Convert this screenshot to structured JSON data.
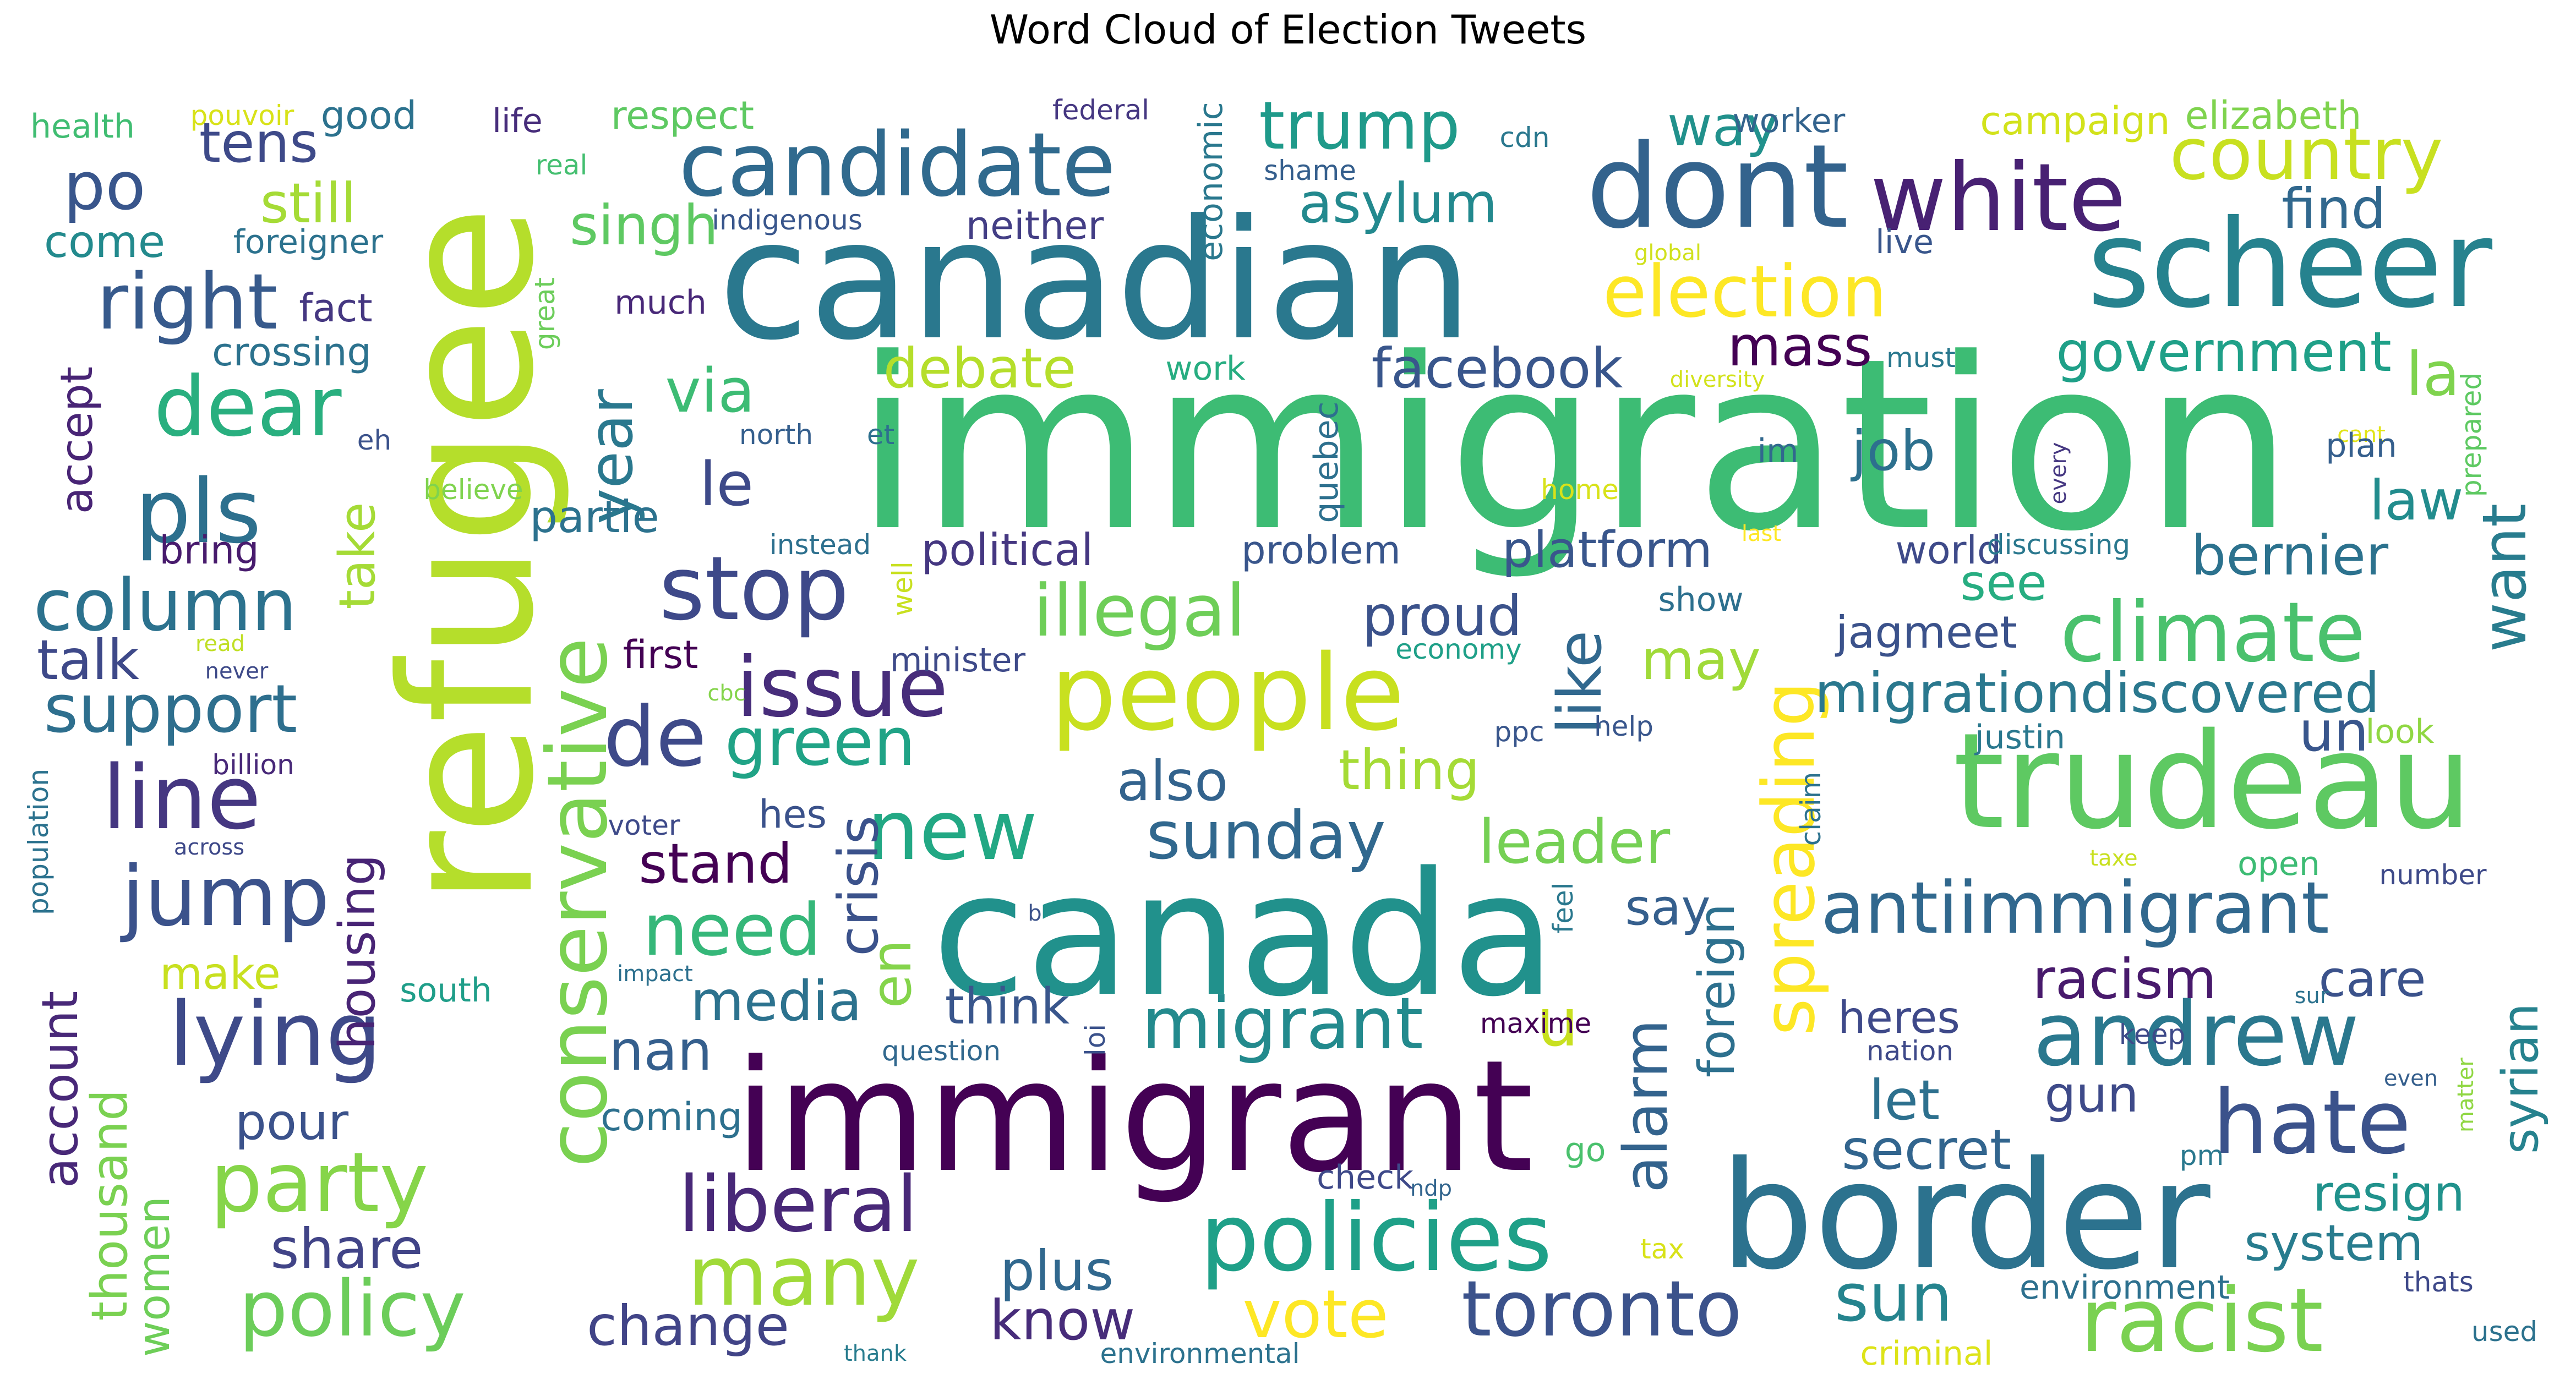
{
  "title": "Word Cloud of Election Tweets",
  "palette": "viridis",
  "words": [
    {
      "text": "immigration",
      "color": "#3dbc74"
    },
    {
      "text": "refugee",
      "color": "#b5de2b"
    },
    {
      "text": "canadian",
      "color": "#2a788e"
    },
    {
      "text": "canada",
      "color": "#21918c"
    },
    {
      "text": "immigrant",
      "color": "#440154"
    },
    {
      "text": "border",
      "color": "#2c728e"
    },
    {
      "text": "trudeau",
      "color": "#5ec962"
    },
    {
      "text": "scheer",
      "color": "#26828e"
    },
    {
      "text": "dont",
      "color": "#33638d"
    },
    {
      "text": "people",
      "color": "#c8e020"
    },
    {
      "text": "candidate",
      "color": "#306a8e"
    },
    {
      "text": "white",
      "color": "#482173"
    },
    {
      "text": "policies",
      "color": "#1fa088"
    },
    {
      "text": "conservative",
      "color": "#7ad151"
    },
    {
      "text": "racist",
      "color": "#7ad151"
    },
    {
      "text": "stop",
      "color": "#3e4989"
    },
    {
      "text": "andrew",
      "color": "#2a788e"
    },
    {
      "text": "spreading",
      "color": "#fde725"
    },
    {
      "text": "antiimmigrant",
      "color": "#31688e"
    },
    {
      "text": "climate",
      "color": "#4ac16d"
    },
    {
      "text": "hate",
      "color": "#3b528b"
    },
    {
      "text": "party",
      "color": "#86d549"
    },
    {
      "text": "lying",
      "color": "#3e4a89"
    },
    {
      "text": "many",
      "color": "#a0da39"
    },
    {
      "text": "toronto",
      "color": "#3b528b"
    },
    {
      "text": "policy",
      "color": "#6ccd5a"
    },
    {
      "text": "jump",
      "color": "#3b528b"
    },
    {
      "text": "line",
      "color": "#453781"
    },
    {
      "text": "pls",
      "color": "#2d708e"
    },
    {
      "text": "right",
      "color": "#375a8c"
    },
    {
      "text": "dear",
      "color": "#29af7f"
    },
    {
      "text": "column",
      "color": "#2c728e"
    },
    {
      "text": "new",
      "color": "#22a884"
    },
    {
      "text": "de",
      "color": "#3e4a89"
    },
    {
      "text": "issue",
      "color": "#472d7b"
    },
    {
      "text": "want",
      "color": "#287c8e"
    },
    {
      "text": "country",
      "color": "#c8e020"
    },
    {
      "text": "election",
      "color": "#fde725"
    },
    {
      "text": "illegal",
      "color": "#6ece58"
    },
    {
      "text": "liberal",
      "color": "#482878"
    },
    {
      "text": "migrant",
      "color": "#238a8d"
    },
    {
      "text": "vote",
      "color": "#fde725"
    },
    {
      "text": "sun",
      "color": "#25848e"
    },
    {
      "text": "trump",
      "color": "#1f9a8a"
    },
    {
      "text": "year",
      "color": "#2a788e"
    },
    {
      "text": "like",
      "color": "#31688e"
    },
    {
      "text": "green",
      "color": "#20a386"
    },
    {
      "text": "po",
      "color": "#39568c"
    },
    {
      "text": "sunday",
      "color": "#31688e"
    },
    {
      "text": "need",
      "color": "#35b779"
    },
    {
      "text": "support",
      "color": "#2e6f8e"
    },
    {
      "text": "leader",
      "color": "#75d054"
    },
    {
      "text": "migrationdiscovered",
      "color": "#2a788e"
    },
    {
      "text": "u",
      "color": "#c8e020"
    },
    {
      "text": "alarm",
      "color": "#33638d"
    },
    {
      "text": "government",
      "color": "#1fa088"
    },
    {
      "text": "bernier",
      "color": "#2c728e"
    },
    {
      "text": "facebook",
      "color": "#39568c"
    },
    {
      "text": "debate",
      "color": "#b5de2b"
    },
    {
      "text": "crisis",
      "color": "#3b528b"
    },
    {
      "text": "housing",
      "color": "#482475"
    },
    {
      "text": "racism",
      "color": "#481a6c"
    },
    {
      "text": "know",
      "color": "#472c7a"
    },
    {
      "text": "change",
      "color": "#414487"
    },
    {
      "text": "media",
      "color": "#2c728e"
    },
    {
      "text": "thing",
      "color": "#a5db36"
    },
    {
      "text": "stand",
      "color": "#440154"
    },
    {
      "text": "un",
      "color": "#39568c"
    },
    {
      "text": "accept",
      "color": "#482475"
    },
    {
      "text": "account",
      "color": "#482878"
    },
    {
      "text": "thousand",
      "color": "#7ad151"
    },
    {
      "text": "talk",
      "color": "#3e4989"
    },
    {
      "text": "mass",
      "color": "#440154"
    },
    {
      "text": "asylum",
      "color": "#23898e"
    },
    {
      "text": "la",
      "color": "#7fd34e"
    },
    {
      "text": "proud",
      "color": "#3b528b"
    },
    {
      "text": "take",
      "color": "#a5db36"
    },
    {
      "text": "secret",
      "color": "#32658e"
    },
    {
      "text": "syrian",
      "color": "#26828e"
    },
    {
      "text": "platform",
      "color": "#39568c"
    },
    {
      "text": "way",
      "color": "#21918c"
    },
    {
      "text": "tens",
      "color": "#3e4a89"
    },
    {
      "text": "still",
      "color": "#a5db36"
    },
    {
      "text": "singh",
      "color": "#5ec962"
    },
    {
      "text": "via",
      "color": "#3dbc74"
    },
    {
      "text": "le",
      "color": "#3e4a89"
    },
    {
      "text": "job",
      "color": "#2d708e"
    },
    {
      "text": "law",
      "color": "#228c8d"
    },
    {
      "text": "find",
      "color": "#31688e"
    },
    {
      "text": "foreign",
      "color": "#2d708e"
    },
    {
      "text": "say",
      "color": "#355f8d"
    },
    {
      "text": "see",
      "color": "#27ad81"
    },
    {
      "text": "may",
      "color": "#a0da39"
    },
    {
      "text": "also",
      "color": "#33638d"
    },
    {
      "text": "en",
      "color": "#84d44b"
    },
    {
      "text": "nan",
      "color": "#355f8d"
    },
    {
      "text": "think",
      "color": "#39568c"
    },
    {
      "text": "care",
      "color": "#3b528b"
    },
    {
      "text": "resign",
      "color": "#20928c"
    },
    {
      "text": "system",
      "color": "#287c8e"
    },
    {
      "text": "gun",
      "color": "#3e4a89"
    },
    {
      "text": "let",
      "color": "#2d708e"
    },
    {
      "text": "heres",
      "color": "#3e4989"
    },
    {
      "text": "plus",
      "color": "#31688e"
    },
    {
      "text": "share",
      "color": "#414487"
    },
    {
      "text": "make",
      "color": "#c8e020"
    },
    {
      "text": "pour",
      "color": "#3b528b"
    },
    {
      "text": "women",
      "color": "#6ece58"
    },
    {
      "text": "jagmeet",
      "color": "#3b528b"
    },
    {
      "text": "first",
      "color": "#440154"
    },
    {
      "text": "hes",
      "color": "#3b528b"
    },
    {
      "text": "political",
      "color": "#453781"
    },
    {
      "text": "problem",
      "color": "#39568c"
    },
    {
      "text": "world",
      "color": "#3e4a89"
    },
    {
      "text": "partie",
      "color": "#2c728e"
    },
    {
      "text": "come",
      "color": "#238a8d"
    },
    {
      "text": "good",
      "color": "#2c728e"
    },
    {
      "text": "respect",
      "color": "#5ec962"
    },
    {
      "text": "campaign",
      "color": "#d2e21b"
    },
    {
      "text": "elizabeth",
      "color": "#7fd34e"
    },
    {
      "text": "fact",
      "color": "#453781"
    },
    {
      "text": "crossing",
      "color": "#2c728e"
    },
    {
      "text": "bring",
      "color": "#481b6d"
    },
    {
      "text": "coming",
      "color": "#2d708e"
    },
    {
      "text": "south",
      "color": "#1f9e89"
    },
    {
      "text": "check",
      "color": "#3e4989"
    },
    {
      "text": "economic",
      "color": "#2a788e"
    },
    {
      "text": "neither",
      "color": "#433e85"
    },
    {
      "text": "live",
      "color": "#39568c"
    },
    {
      "text": "health",
      "color": "#40bd72"
    },
    {
      "text": "pouvoir",
      "color": "#d8e219"
    },
    {
      "text": "life",
      "color": "#472d7b"
    },
    {
      "text": "federal",
      "color": "#453781"
    },
    {
      "text": "worker",
      "color": "#33638d"
    },
    {
      "text": "real",
      "color": "#44bf70"
    },
    {
      "text": "shame",
      "color": "#355f8d"
    },
    {
      "text": "cdn",
      "color": "#2a788e"
    },
    {
      "text": "foreigner",
      "color": "#2c728e"
    },
    {
      "text": "indigenous",
      "color": "#39568c"
    },
    {
      "text": "great",
      "color": "#6ccd5a"
    },
    {
      "text": "much",
      "color": "#482878"
    },
    {
      "text": "global",
      "color": "#d0e11c"
    },
    {
      "text": "work",
      "color": "#27ad81"
    },
    {
      "text": "must",
      "color": "#2a788e"
    },
    {
      "text": "diversity",
      "color": "#d2e21b"
    },
    {
      "text": "quebec",
      "color": "#2d708e"
    },
    {
      "text": "north",
      "color": "#355f8d"
    },
    {
      "text": "et",
      "color": "#2d708e"
    },
    {
      "text": "cant",
      "color": "#e2e418"
    },
    {
      "text": "prepared",
      "color": "#5ec962"
    },
    {
      "text": "eh",
      "color": "#3b528b"
    },
    {
      "text": "believe",
      "color": "#7fd34e"
    },
    {
      "text": "home",
      "color": "#d8e219"
    },
    {
      "text": "im",
      "color": "#31688e"
    },
    {
      "text": "every",
      "color": "#453781"
    },
    {
      "text": "plan",
      "color": "#355f8d"
    },
    {
      "text": "instead",
      "color": "#2d708e"
    },
    {
      "text": "well",
      "color": "#c8e020"
    },
    {
      "text": "last",
      "color": "#fde725"
    },
    {
      "text": "discussing",
      "color": "#2a788e"
    },
    {
      "text": "read",
      "color": "#c0df25"
    },
    {
      "text": "never",
      "color": "#3e4a89"
    },
    {
      "text": "minister",
      "color": "#3e4a89"
    },
    {
      "text": "economy",
      "color": "#1fa088"
    },
    {
      "text": "show",
      "color": "#2d708e"
    },
    {
      "text": "cbc",
      "color": "#84d44b"
    },
    {
      "text": "ppc",
      "color": "#39568c"
    },
    {
      "text": "justin",
      "color": "#2a788e"
    },
    {
      "text": "look",
      "color": "#90d743"
    },
    {
      "text": "help",
      "color": "#39568c"
    },
    {
      "text": "billion",
      "color": "#482878"
    },
    {
      "text": "population",
      "color": "#2c728e"
    },
    {
      "text": "across",
      "color": "#3e4989"
    },
    {
      "text": "voter",
      "color": "#3e4a89"
    },
    {
      "text": "b",
      "color": "#3b528b"
    },
    {
      "text": "feel",
      "color": "#2a788e"
    },
    {
      "text": "claim",
      "color": "#2c728e"
    },
    {
      "text": "taxe",
      "color": "#c8e020"
    },
    {
      "text": "open",
      "color": "#3dbc74"
    },
    {
      "text": "number",
      "color": "#3e4a89"
    },
    {
      "text": "impact",
      "color": "#2d708e"
    },
    {
      "text": "question",
      "color": "#31688e"
    },
    {
      "text": "loi",
      "color": "#3b528b"
    },
    {
      "text": "maxime",
      "color": "#440154"
    },
    {
      "text": "go",
      "color": "#4ac16d"
    },
    {
      "text": "nation",
      "color": "#3e4989"
    },
    {
      "text": "sur",
      "color": "#2c728e"
    },
    {
      "text": "keep",
      "color": "#3e4a89"
    },
    {
      "text": "even",
      "color": "#355f8d"
    },
    {
      "text": "matter",
      "color": "#90d743"
    },
    {
      "text": "pm",
      "color": "#2a788e"
    },
    {
      "text": "ndp",
      "color": "#32658e"
    },
    {
      "text": "tax",
      "color": "#d8e219"
    },
    {
      "text": "environment",
      "color": "#2d708e"
    },
    {
      "text": "thats",
      "color": "#3e4989"
    },
    {
      "text": "used",
      "color": "#2c728e"
    },
    {
      "text": "thank",
      "color": "#287c8e"
    },
    {
      "text": "environmental",
      "color": "#2c728e"
    },
    {
      "text": "criminal",
      "color": "#dde318"
    }
  ]
}
